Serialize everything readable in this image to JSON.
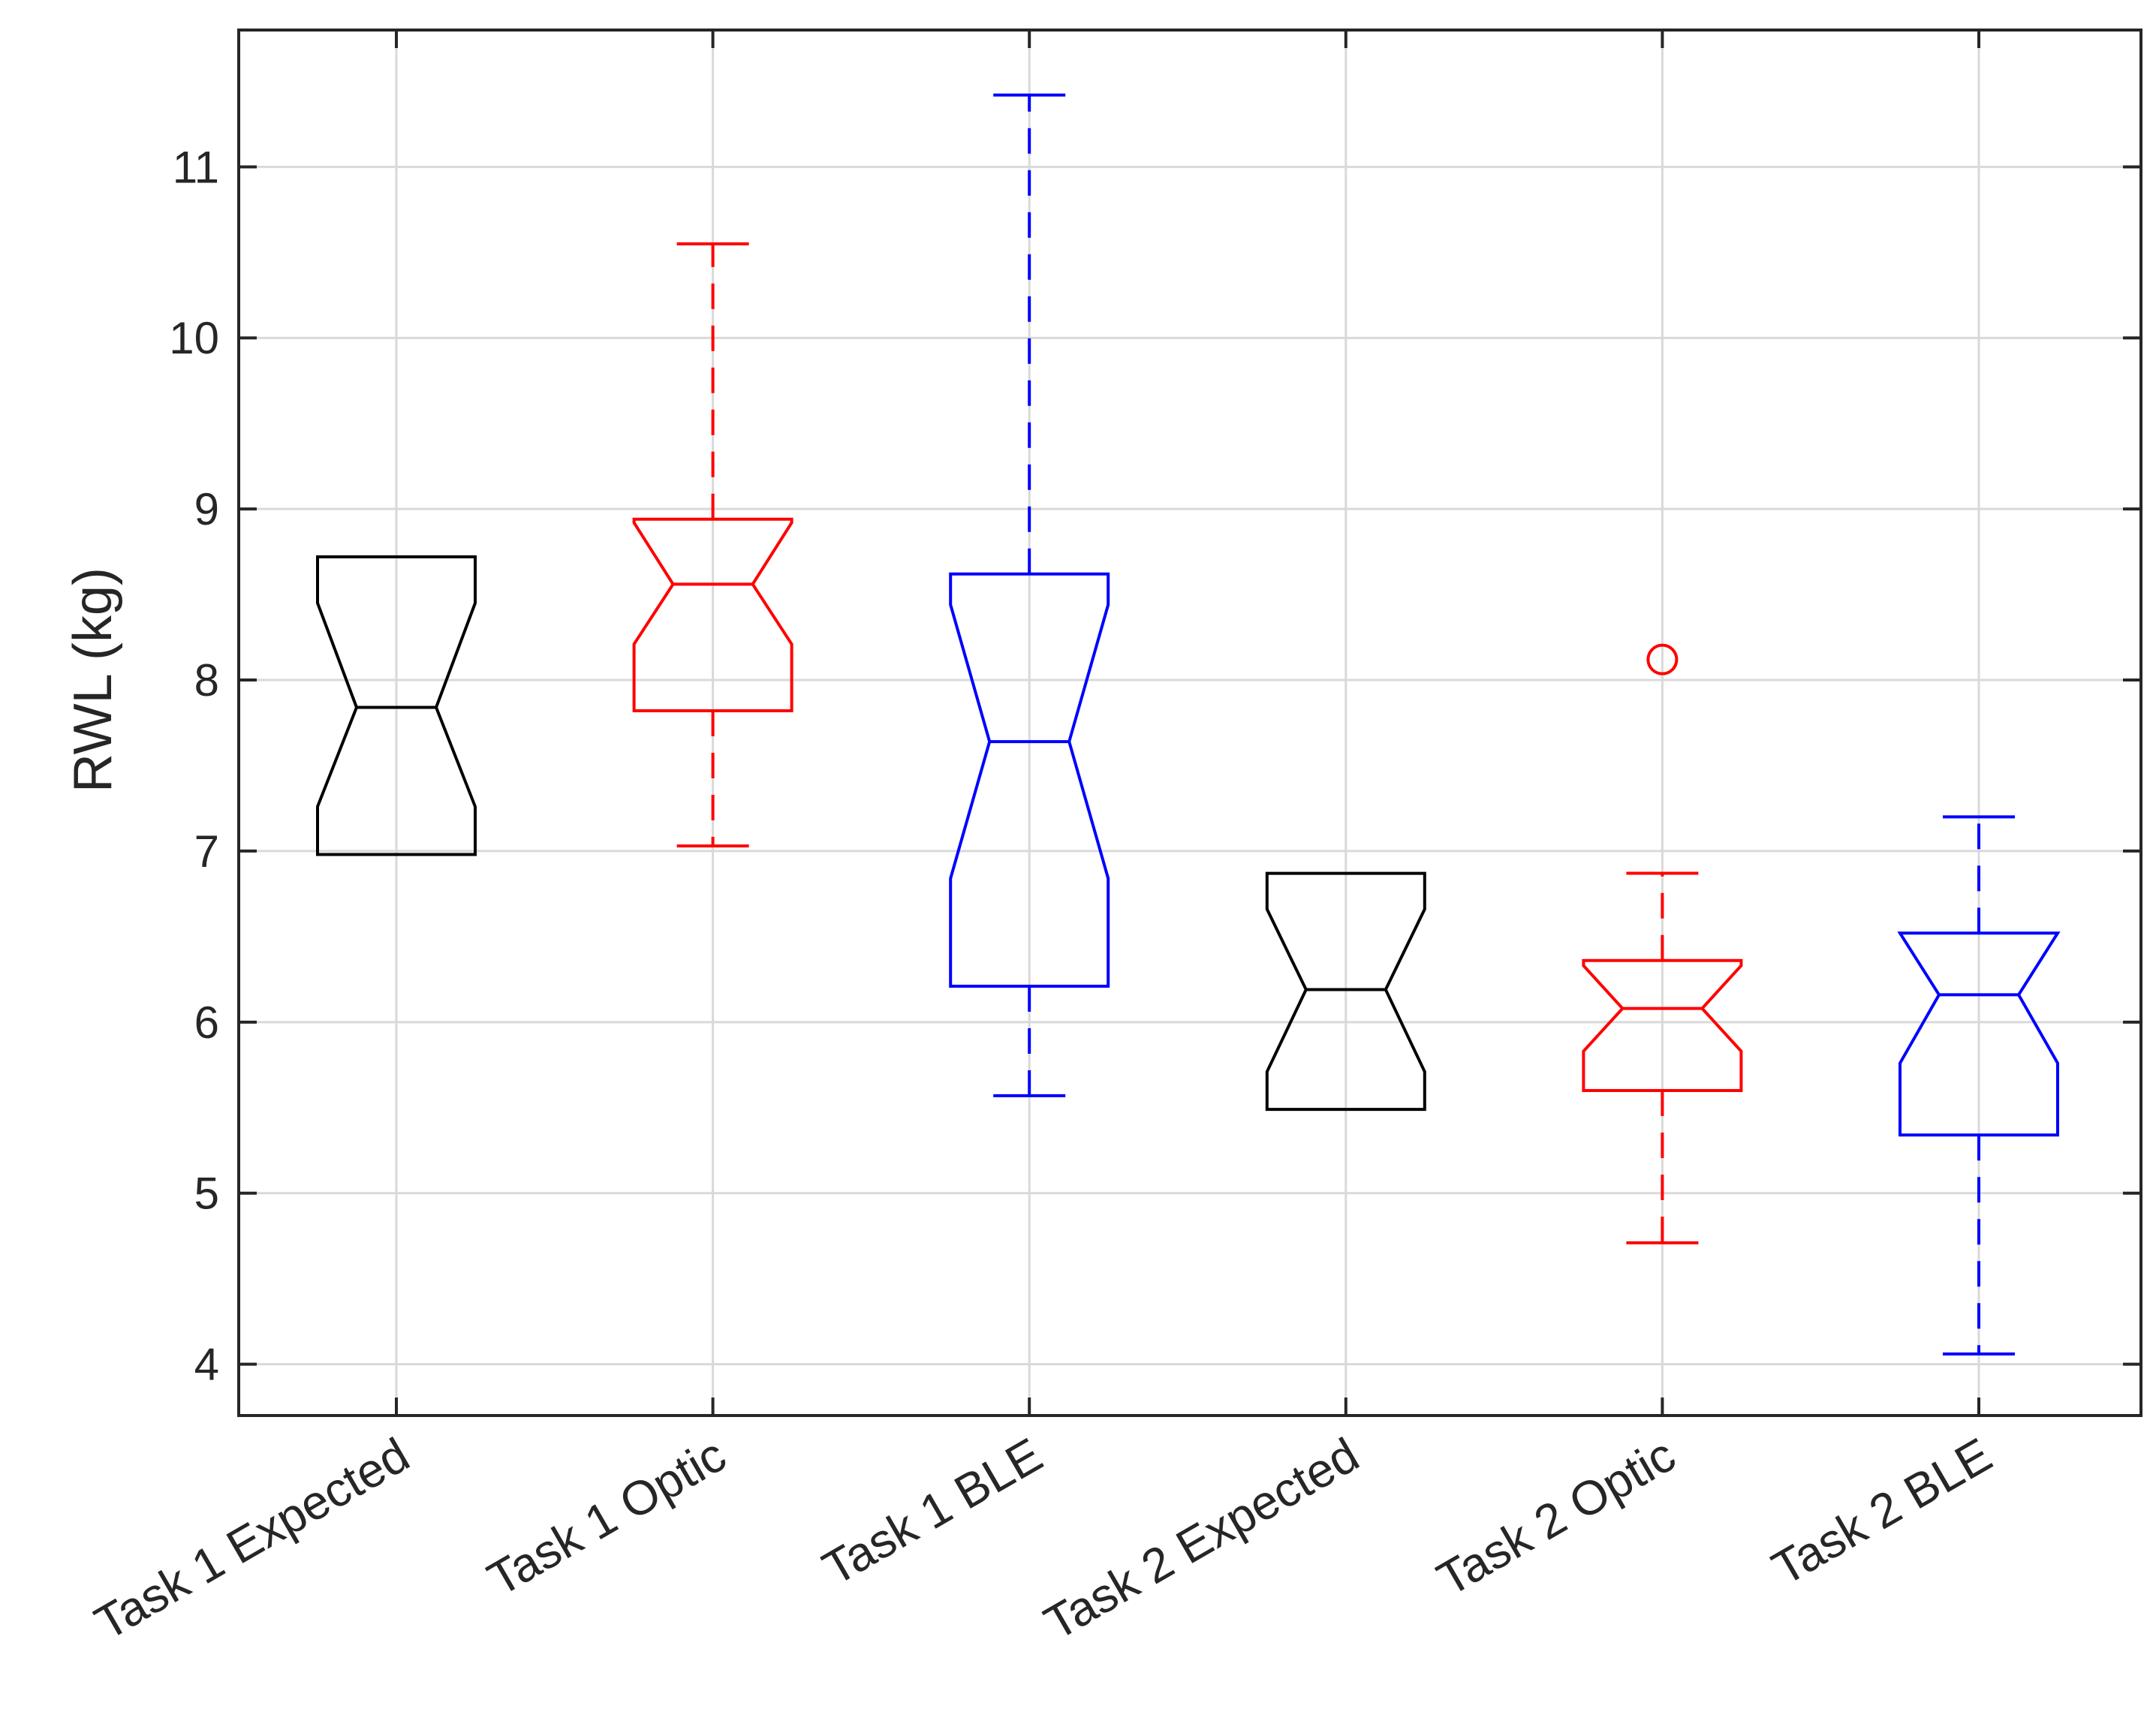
{
  "chart_data": {
    "type": "boxplot",
    "notched": true,
    "title": "",
    "xlabel": "",
    "ylabel": "RWL (kg)",
    "ylim": [
      3.7,
      11.8
    ],
    "y_ticks": [
      4,
      5,
      6,
      7,
      8,
      9,
      10,
      11
    ],
    "grid": true,
    "categories": [
      "Task 1  Expected",
      "Task 1 Optic",
      "Task 1  BLE",
      "Task 2  Expected",
      "Task 2 Optic",
      "Task 2  BLE"
    ],
    "colors": {
      "Expected": "#000000",
      "Optic": "#ff0000",
      "BLE": "#0000ff",
      "grid": "#d9d9d9",
      "axes": "#262626"
    },
    "boxes": [
      {
        "category": "Task 1  Expected",
        "color": "#000000",
        "whisker_low": 6.98,
        "q1": 6.98,
        "median": 7.84,
        "q3": 8.72,
        "whisker_high": 8.72,
        "notch_low": 7.26,
        "notch_high": 8.45,
        "outliers": []
      },
      {
        "category": "Task 1 Optic",
        "color": "#ff0000",
        "whisker_low": 7.03,
        "q1": 7.82,
        "median": 8.56,
        "q3": 8.94,
        "whisker_high": 10.55,
        "notch_low": 8.21,
        "notch_high": 8.92,
        "outliers": []
      },
      {
        "category": "Task 1  BLE",
        "color": "#0000ff",
        "whisker_low": 5.57,
        "q1": 6.21,
        "median": 7.64,
        "q3": 8.62,
        "whisker_high": 11.42,
        "notch_low": 6.84,
        "notch_high": 8.44,
        "outliers": []
      },
      {
        "category": "Task 2  Expected",
        "color": "#000000",
        "whisker_low": 5.49,
        "q1": 5.49,
        "median": 6.19,
        "q3": 6.87,
        "whisker_high": 6.87,
        "notch_low": 5.71,
        "notch_high": 6.66,
        "outliers": []
      },
      {
        "category": "Task 2 Optic",
        "color": "#ff0000",
        "whisker_low": 4.71,
        "q1": 5.6,
        "median": 6.08,
        "q3": 6.36,
        "whisker_high": 6.87,
        "notch_low": 5.83,
        "notch_high": 6.33,
        "outliers": [
          8.12
        ]
      },
      {
        "category": "Task 2  BLE",
        "color": "#0000ff",
        "whisker_low": 4.06,
        "q1": 5.34,
        "median": 6.16,
        "q3": 6.52,
        "whisker_high": 7.2,
        "notch_low": 5.76,
        "notch_high": 6.52,
        "outliers": []
      }
    ]
  }
}
